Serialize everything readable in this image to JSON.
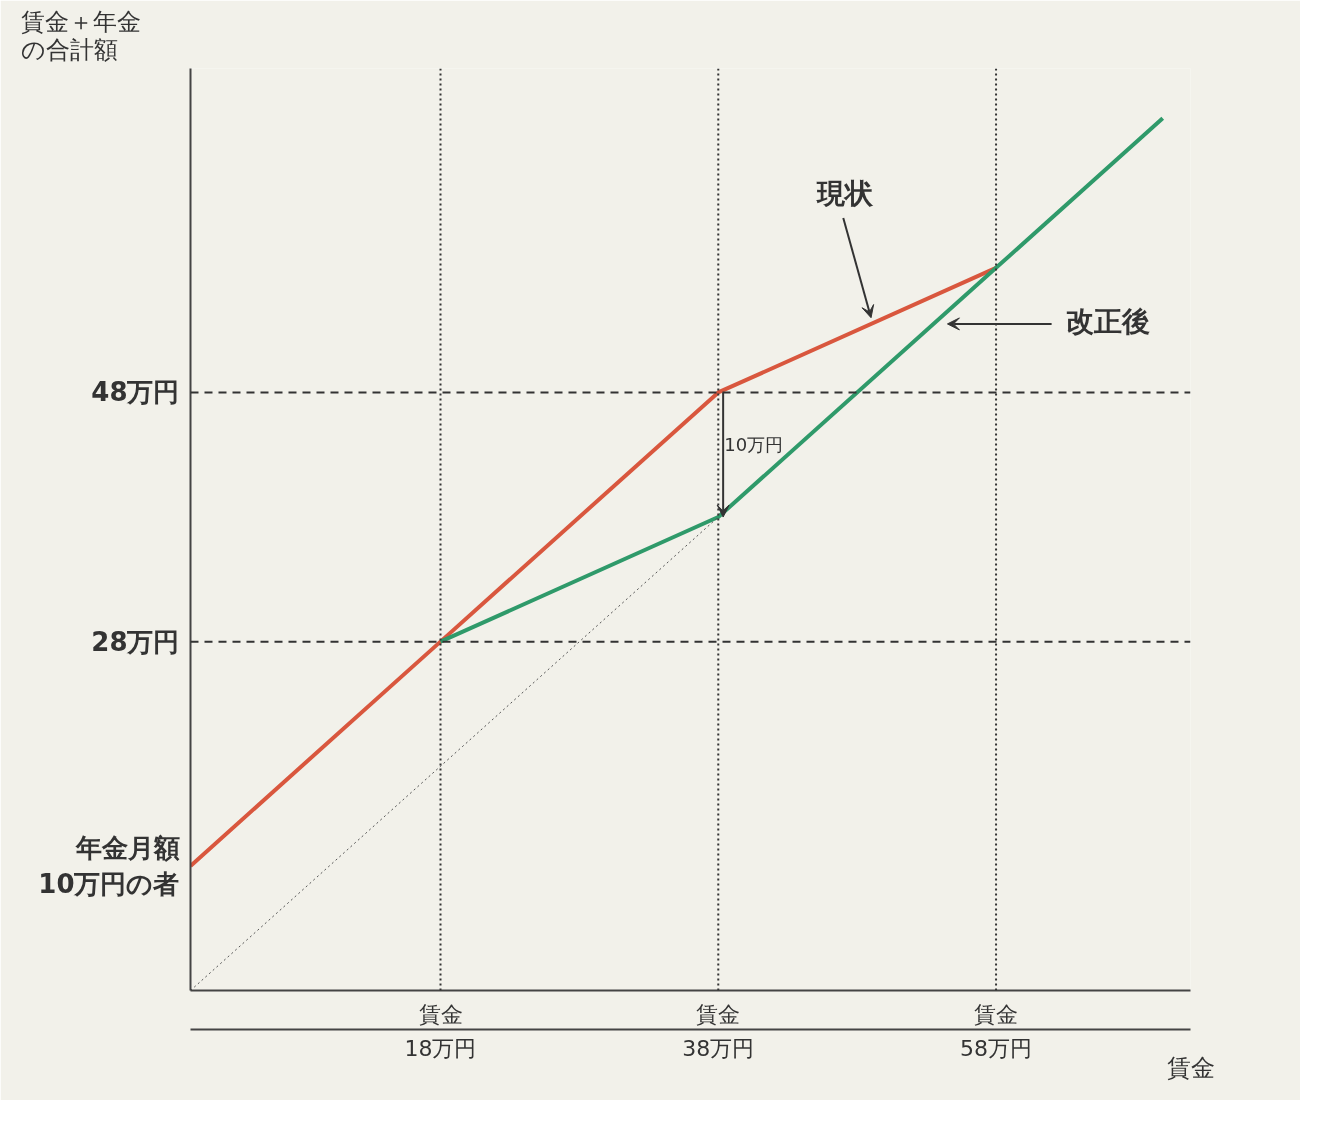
{
  "chart_data": {
    "type": "line",
    "ylabel": "賃金＋年金の合計額",
    "xlabel": "賃金",
    "xlim": [
      0,
      72
    ],
    "ylim": [
      0,
      74
    ],
    "xticks": [
      {
        "value": 18,
        "label": "18万円"
      },
      {
        "value": 38,
        "label": "38万円"
      },
      {
        "value": 58,
        "label": "58万円"
      }
    ],
    "yticks": [
      {
        "value": 10,
        "label": "年金月額\n10万円の者"
      },
      {
        "value": 28,
        "label": "28万円"
      },
      {
        "value": 48,
        "label": "48万円"
      }
    ],
    "series": [
      {
        "name": "現状",
        "color": "#d9573e",
        "x": [
          0,
          18,
          38,
          58
        ],
        "values": [
          10,
          28,
          48,
          58
        ]
      },
      {
        "name": "改正後",
        "color": "#2f9a6a",
        "x": [
          18,
          38,
          58,
          70
        ],
        "values": [
          28,
          38,
          58,
          70
        ]
      },
      {
        "color": "#555555",
        "x": [
          0,
          38
        ],
        "values": [
          0,
          38
        ],
        "line_style": "dotted"
      }
    ],
    "ref_lines": [
      {
        "axis": "y",
        "value": 28,
        "line_style": "dashed",
        "color": "#333333"
      },
      {
        "axis": "y",
        "value": 48,
        "line_style": "dashed",
        "color": "#333333"
      },
      {
        "axis": "x",
        "value": 18,
        "line_style": "dotted",
        "color": "#333333"
      },
      {
        "axis": "x",
        "value": 38,
        "line_style": "dotted",
        "color": "#333333"
      },
      {
        "axis": "x",
        "value": 58,
        "line_style": "dotted",
        "color": "#333333"
      }
    ],
    "annotations": [
      {
        "text": "10万円",
        "x": 38,
        "y": 43
      },
      "賃金",
      "賃金",
      "賃金"
    ]
  }
}
